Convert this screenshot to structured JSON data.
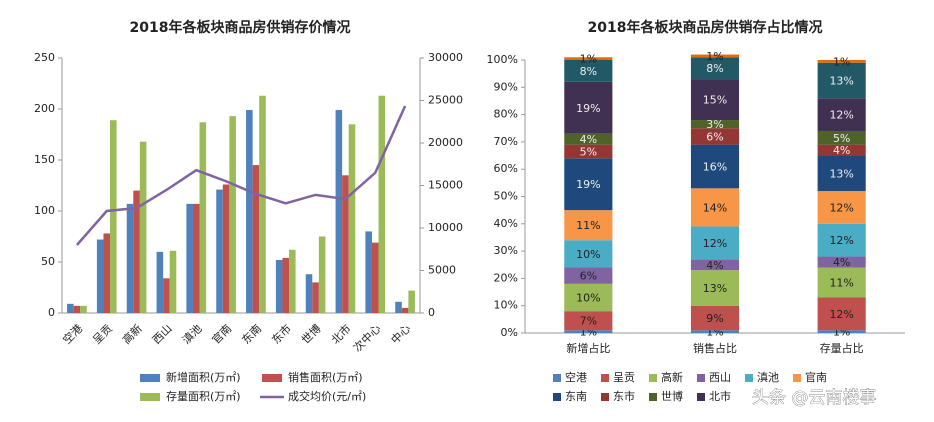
{
  "chart_data": [
    {
      "type": "bar",
      "title": "2018年各板块商品房供销存价情况",
      "categories": [
        "空港",
        "呈贡",
        "高新",
        "西山",
        "滇池",
        "官南",
        "东南",
        "东市",
        "世博",
        "北市",
        "次中心",
        "中心"
      ],
      "series": [
        {
          "name": "新增面积(万㎡)",
          "color": "#4f81bd",
          "values": [
            9,
            72,
            107,
            60,
            107,
            121,
            199,
            52,
            38,
            199,
            80,
            11
          ]
        },
        {
          "name": "销售面积(万㎡)",
          "color": "#c0504d",
          "values": [
            7,
            78,
            120,
            34,
            107,
            126,
            145,
            54,
            30,
            135,
            69,
            5
          ]
        },
        {
          "name": "存量面积(万㎡)",
          "color": "#9bbb59",
          "values": [
            7,
            189,
            168,
            61,
            187,
            193,
            213,
            62,
            75,
            185,
            213,
            22
          ]
        },
        {
          "name": "成交均价(元/㎡)",
          "color": "#8064a2",
          "type": "line",
          "axis": "y2",
          "values": [
            8000,
            12000,
            12350,
            14470,
            16800,
            15500,
            14000,
            12900,
            13900,
            13400,
            16500,
            24350
          ]
        }
      ],
      "ylim": [
        0,
        250
      ],
      "yticks": [
        0,
        50,
        100,
        150,
        200,
        250
      ],
      "y2lim": [
        0,
        30000
      ],
      "y2ticks": [
        0,
        5000,
        10000,
        15000,
        20000,
        25000,
        30000
      ],
      "legend": "bottom"
    },
    {
      "type": "stacked_bar",
      "title": "2018年各板块商品房供销存占比情况",
      "categories": [
        "新增占比",
        "销售占比",
        "存量占比"
      ],
      "series": [
        {
          "name": "空港",
          "color": "#4f81bd",
          "values": [
            1,
            1,
            1
          ],
          "value_labels": [
            "1%",
            "1%",
            "1%"
          ]
        },
        {
          "name": "呈贡",
          "color": "#c0504d",
          "values": [
            7,
            9,
            12
          ],
          "value_labels": [
            "7%",
            "9%",
            "12%"
          ]
        },
        {
          "name": "高新",
          "color": "#9bbb59",
          "values": [
            10,
            13,
            11
          ],
          "value_labels": [
            "10%",
            "13%",
            "11%"
          ]
        },
        {
          "name": "西山",
          "color": "#8064a2",
          "values": [
            6,
            4,
            4
          ],
          "value_labels": [
            "6%",
            "4%",
            "4%"
          ]
        },
        {
          "name": "滇池",
          "color": "#4bacc6",
          "values": [
            10,
            12,
            12
          ],
          "value_labels": [
            "10%",
            "12%",
            "12%"
          ]
        },
        {
          "name": "官南",
          "color": "#f79646",
          "values": [
            11,
            14,
            12
          ],
          "value_labels": [
            "11%",
            "14%",
            "12%"
          ]
        },
        {
          "name": "东南",
          "color": "#1f497d",
          "values": [
            19,
            16,
            13
          ],
          "value_labels": [
            "19%",
            "16%",
            "13%"
          ]
        },
        {
          "name": "东市",
          "color": "#943634",
          "values": [
            5,
            6,
            4
          ],
          "value_labels": [
            "5%",
            "6%",
            "4%"
          ]
        },
        {
          "name": "世博",
          "color": "#4f6228",
          "values": [
            4,
            3,
            5
          ],
          "value_labels": [
            "4%",
            "3%",
            "5%"
          ]
        },
        {
          "name": "北市",
          "color": "#403152",
          "values": [
            19,
            15,
            12
          ],
          "value_labels": [
            "19%",
            "15%",
            "12%"
          ]
        },
        {
          "color": "#215967",
          "values": [
            8,
            8,
            13
          ],
          "value_labels": [
            "8%",
            "8%",
            "13%"
          ]
        },
        {
          "color": "#e36c09",
          "values": [
            1,
            1,
            1
          ],
          "value_labels": [
            "1%",
            "1%",
            "1%"
          ]
        }
      ],
      "ylim": [
        0,
        100
      ],
      "yticks": [
        {
          "value": 0,
          "label": "0%"
        },
        {
          "value": 10,
          "label": "10%"
        },
        {
          "value": 20,
          "label": "20%"
        },
        {
          "value": 30,
          "label": "30%"
        },
        {
          "value": 40,
          "label": "40%"
        },
        {
          "value": 50,
          "label": "50%"
        },
        {
          "value": 60,
          "label": "60%"
        },
        {
          "value": 70,
          "label": "70%"
        },
        {
          "value": 80,
          "label": "80%"
        },
        {
          "value": 90,
          "label": "90%"
        },
        {
          "value": 100,
          "label": "100%"
        }
      ],
      "legend": "bottom"
    }
  ],
  "watermark": "头条 @云南楼事"
}
